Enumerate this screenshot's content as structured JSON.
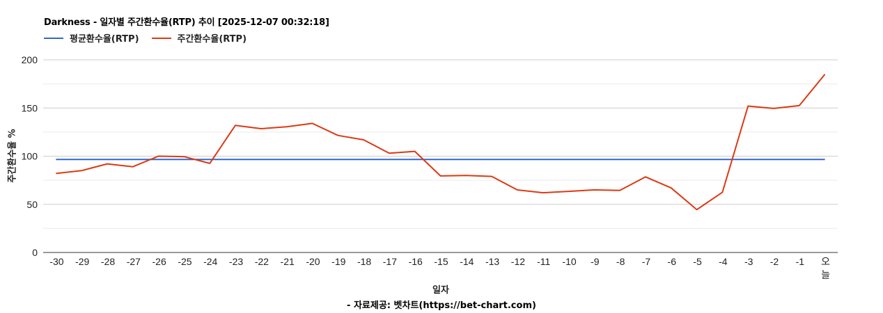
{
  "chart_data": {
    "type": "line",
    "title": "Darkness - 일자별 주간환수율(RTP) 추이 [2025-12-07 00:32:18]",
    "xlabel": "일자",
    "ylabel": "주간환수율 %",
    "source": "- 자료제공: 벳차트(https://bet-chart.com)",
    "ylim": [
      0,
      200
    ],
    "yticks": [
      0,
      50,
      100,
      150,
      200
    ],
    "minor_gridlines": [
      25,
      75,
      125,
      175
    ],
    "grid": true,
    "legend_position": "top-left",
    "categories": [
      "-30",
      "-29",
      "-28",
      "-27",
      "-26",
      "-25",
      "-24",
      "-23",
      "-22",
      "-21",
      "-20",
      "-19",
      "-18",
      "-17",
      "-16",
      "-15",
      "-14",
      "-13",
      "-12",
      "-11",
      "-10",
      "-9",
      "-8",
      "-7",
      "-6",
      "-5",
      "-4",
      "-3",
      "-2",
      "-1",
      "오늘"
    ],
    "series": [
      {
        "name": "평균환수율(RTP)",
        "color": "#3366cc",
        "values": [
          96.5,
          96.5,
          96.5,
          96.5,
          96.5,
          96.5,
          96.5,
          96.5,
          96.5,
          96.5,
          96.5,
          96.5,
          96.5,
          96.5,
          96.5,
          96.5,
          96.5,
          96.5,
          96.5,
          96.5,
          96.5,
          96.5,
          96.5,
          96.5,
          96.5,
          96.5,
          96.5,
          96.5,
          96.5,
          96.5,
          96.5
        ]
      },
      {
        "name": "주간환수율(RTP)",
        "color": "#dc3912",
        "values": [
          82,
          85,
          92,
          89,
          100,
          99.5,
          92.5,
          132,
          128.5,
          130.5,
          134,
          121.5,
          117,
          103,
          105,
          79.5,
          80,
          79,
          65,
          62,
          63.5,
          65,
          64.5,
          78.5,
          67,
          44.5,
          62.5,
          152,
          149.5,
          152.5,
          185
        ]
      }
    ]
  },
  "legend": {
    "items": [
      {
        "label": "평균환수율(RTP)",
        "color": "#3366cc"
      },
      {
        "label": "주간환수율(RTP)",
        "color": "#dc3912"
      }
    ]
  }
}
